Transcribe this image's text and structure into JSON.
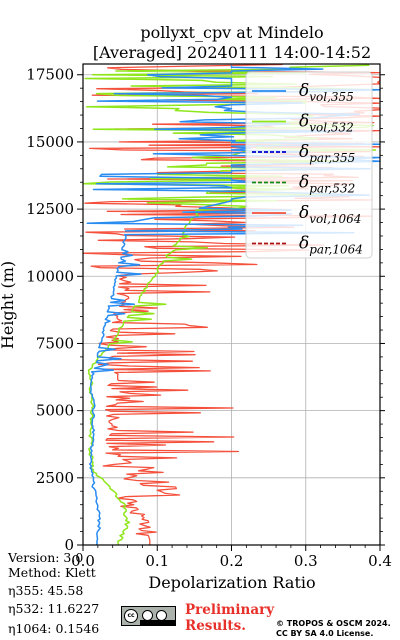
{
  "title": {
    "line1": "pollyxt_cpv at Mindelo",
    "line2": "[Averaged] 20240111 14:00-14:52"
  },
  "chart_data": {
    "type": "line",
    "xlabel": "Depolarization Ratio",
    "ylabel": "Height (m)",
    "xlim": [
      0,
      0.4
    ],
    "ylim": [
      0,
      17900
    ],
    "x_ticks": [
      "0.0",
      "0.1",
      "0.2",
      "0.3",
      "0.4"
    ],
    "y_ticks": [
      "0",
      "2500",
      "5000",
      "7500",
      "10000",
      "12500",
      "15000",
      "17500"
    ],
    "grid": true,
    "legend_position": "top-right",
    "series": [
      {
        "name": "δvol,355",
        "color": "#2a8cf0",
        "dash": "solid",
        "points": [
          [
            0.02,
            300
          ],
          [
            0.022,
            800
          ],
          [
            0.02,
            1500
          ],
          [
            0.014,
            2200
          ],
          [
            0.011,
            3000
          ],
          [
            0.013,
            4000
          ],
          [
            0.015,
            5000
          ],
          [
            0.01,
            6000
          ],
          [
            0.06,
            12000
          ],
          [
            0.12,
            12300
          ],
          [
            0.2,
            12800
          ]
        ]
      },
      {
        "name": "δvol,532",
        "color": "#8fe61b",
        "dash": "solid",
        "points": [
          [
            0.05,
            200
          ],
          [
            0.06,
            800
          ],
          [
            0.055,
            1500
          ],
          [
            0.04,
            2000
          ],
          [
            0.012,
            2800
          ],
          [
            0.01,
            4000
          ],
          [
            0.012,
            5000
          ],
          [
            0.01,
            6500
          ],
          [
            0.2,
            14500
          ],
          [
            0.3,
            15300
          ],
          [
            0.3,
            16800
          ]
        ]
      },
      {
        "name": "δpar,355",
        "color": "#0000cc",
        "dash": "dashed",
        "points": []
      },
      {
        "name": "δpar,532",
        "color": "#118811",
        "dash": "dashed",
        "points": []
      },
      {
        "name": "δvol,1064",
        "color": "#f4503c",
        "dash": "solid",
        "points": [
          [
            0.09,
            200
          ],
          [
            0.08,
            900
          ],
          [
            0.06,
            1600
          ],
          [
            0.05,
            2300
          ],
          [
            0.02,
            3000
          ],
          [
            0.02,
            5000
          ],
          [
            0.02,
            8000
          ],
          [
            0.05,
            11000
          ],
          [
            0.2,
            13000
          ],
          [
            0.3,
            15000
          ],
          [
            0.4,
            17800
          ]
        ]
      },
      {
        "name": "δpar,1064",
        "color": "#aa1111",
        "dash": "dashed",
        "points": []
      }
    ]
  },
  "legend": {
    "items": [
      {
        "base": "δ",
        "sub": "vol,355",
        "color": "#2a8cf0",
        "dash": "solid"
      },
      {
        "base": "δ",
        "sub": "vol,532",
        "color": "#8fe61b",
        "dash": "solid"
      },
      {
        "base": "δ",
        "sub": "par,355",
        "color": "#0000cc",
        "dash": "dashed"
      },
      {
        "base": "δ",
        "sub": "par,532",
        "color": "#118811",
        "dash": "dashed"
      },
      {
        "base": "δ",
        "sub": "vol,1064",
        "color": "#f4503c",
        "dash": "solid"
      },
      {
        "base": "δ",
        "sub": "par,1064",
        "color": "#aa1111",
        "dash": "dashed"
      }
    ]
  },
  "footer": {
    "version": "Version: 3.0",
    "method": "Method: Klett",
    "eta355": "η355:  45.58",
    "eta532": "η532: 11.6227",
    "eta1064": "η1064: 0.1546",
    "cc_label": "cc",
    "preliminary_line1": "Preliminary",
    "preliminary_line2": "Results.",
    "copyright_line1": "© TROPOS & OSCM 2024.",
    "copyright_line2": "CC BY SA 4.0 License."
  }
}
